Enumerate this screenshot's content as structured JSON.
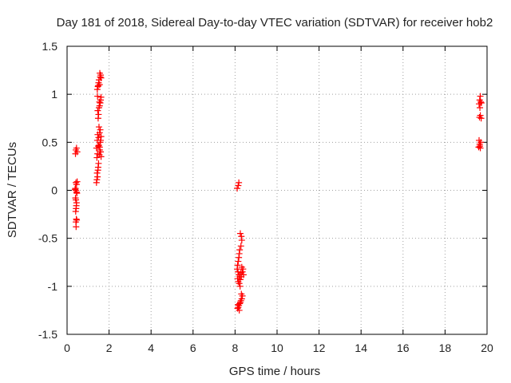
{
  "chart_data": {
    "type": "scatter",
    "title": "Day 181 of 2018, Sidereal Day-to-day VTEC variation (SDTVAR) for receiver hob2",
    "xlabel": "GPS time / hours",
    "ylabel": "SDTVAR / TECUs",
    "xlim": [
      0,
      20
    ],
    "ylim": [
      -1.5,
      1.5
    ],
    "x_ticks": [
      0,
      2,
      4,
      6,
      8,
      10,
      12,
      14,
      16,
      18,
      20
    ],
    "y_ticks": [
      -1.5,
      -1,
      -0.5,
      0,
      0.5,
      1,
      1.5
    ],
    "x_tick_labels": [
      "0",
      "2",
      "4",
      "6",
      "8",
      "10",
      "12",
      "14",
      "16",
      "18",
      "20"
    ],
    "y_tick_labels": [
      "-1.5",
      "-1",
      "-0.5",
      "0",
      "0.5",
      "1",
      "1.5"
    ],
    "grid": true,
    "marker": "+",
    "marker_color": "#ff0000",
    "series": [
      {
        "name": "SDTVAR",
        "points": [
          [
            0.4,
            0.38
          ],
          [
            0.42,
            0.42
          ],
          [
            0.45,
            0.44
          ],
          [
            0.48,
            0.4
          ],
          [
            0.42,
            0.08
          ],
          [
            0.45,
            0.06
          ],
          [
            0.48,
            0.09
          ],
          [
            0.4,
            0.02
          ],
          [
            0.42,
            0.0
          ],
          [
            0.45,
            -0.02
          ],
          [
            0.38,
            0.01
          ],
          [
            0.47,
            -0.03
          ],
          [
            0.4,
            -0.08
          ],
          [
            0.42,
            -0.1
          ],
          [
            0.45,
            -0.13
          ],
          [
            0.44,
            -0.16
          ],
          [
            0.43,
            -0.19
          ],
          [
            0.41,
            -0.22
          ],
          [
            0.44,
            -0.3
          ],
          [
            0.46,
            -0.31
          ],
          [
            0.42,
            -0.33
          ],
          [
            0.43,
            -0.38
          ],
          [
            1.4,
            0.08
          ],
          [
            1.42,
            0.11
          ],
          [
            1.45,
            0.14
          ],
          [
            1.43,
            0.18
          ],
          [
            1.47,
            0.21
          ],
          [
            1.48,
            0.24
          ],
          [
            1.5,
            0.28
          ],
          [
            1.42,
            0.34
          ],
          [
            1.45,
            0.38
          ],
          [
            1.4,
            0.44
          ],
          [
            1.48,
            0.46
          ],
          [
            1.52,
            0.47
          ],
          [
            1.55,
            0.45
          ],
          [
            1.58,
            0.5
          ],
          [
            1.44,
            0.52
          ],
          [
            1.5,
            0.55
          ],
          [
            1.6,
            0.52
          ],
          [
            1.62,
            0.56
          ],
          [
            1.46,
            0.58
          ],
          [
            1.55,
            0.6
          ],
          [
            1.58,
            0.63
          ],
          [
            1.52,
            0.66
          ],
          [
            1.6,
            0.4
          ],
          [
            1.62,
            0.35
          ],
          [
            1.56,
            0.42
          ],
          [
            1.54,
            0.37
          ],
          [
            1.48,
            0.75
          ],
          [
            1.5,
            0.79
          ],
          [
            1.46,
            0.83
          ],
          [
            1.52,
            0.86
          ],
          [
            1.55,
            0.88
          ],
          [
            1.58,
            0.91
          ],
          [
            1.6,
            0.94
          ],
          [
            1.62,
            0.97
          ],
          [
            1.54,
            0.92
          ],
          [
            1.45,
            0.98
          ],
          [
            1.44,
            1.05
          ],
          [
            1.48,
            1.09
          ],
          [
            1.5,
            1.12
          ],
          [
            1.52,
            1.15
          ],
          [
            1.55,
            1.1
          ],
          [
            1.58,
            1.18
          ],
          [
            1.6,
            1.2
          ],
          [
            1.62,
            1.17
          ],
          [
            1.56,
            1.22
          ],
          [
            1.47,
            1.08
          ],
          [
            8.1,
            0.02
          ],
          [
            8.15,
            0.05
          ],
          [
            8.18,
            0.08
          ],
          [
            8.25,
            -0.45
          ],
          [
            8.3,
            -0.48
          ],
          [
            8.32,
            -0.52
          ],
          [
            8.28,
            -0.58
          ],
          [
            8.22,
            -0.62
          ],
          [
            8.2,
            -0.66
          ],
          [
            8.18,
            -0.7
          ],
          [
            8.15,
            -0.74
          ],
          [
            8.12,
            -0.78
          ],
          [
            8.1,
            -0.82
          ],
          [
            8.14,
            -0.85
          ],
          [
            8.18,
            -0.88
          ],
          [
            8.12,
            -0.92
          ],
          [
            8.15,
            -0.95
          ],
          [
            8.2,
            -0.97
          ],
          [
            8.25,
            -0.93
          ],
          [
            8.3,
            -0.9
          ],
          [
            8.35,
            -0.85
          ],
          [
            8.38,
            -0.82
          ],
          [
            8.32,
            -0.8
          ],
          [
            8.28,
            -0.86
          ],
          [
            8.4,
            -0.88
          ],
          [
            8.22,
            -0.9
          ],
          [
            8.24,
            -1.0
          ],
          [
            8.3,
            -1.08
          ],
          [
            8.35,
            -1.1
          ],
          [
            8.32,
            -1.13
          ],
          [
            8.28,
            -1.15
          ],
          [
            8.25,
            -1.17
          ],
          [
            8.22,
            -1.18
          ],
          [
            8.18,
            -1.2
          ],
          [
            8.15,
            -1.22
          ],
          [
            8.12,
            -1.23
          ],
          [
            8.2,
            -1.25
          ],
          [
            8.14,
            -1.19
          ],
          [
            19.6,
            0.45
          ],
          [
            19.65,
            0.48
          ],
          [
            19.7,
            0.5
          ],
          [
            19.68,
            0.44
          ],
          [
            19.62,
            0.52
          ],
          [
            19.66,
            0.46
          ],
          [
            19.64,
            0.76
          ],
          [
            19.68,
            0.78
          ],
          [
            19.72,
            0.75
          ],
          [
            19.66,
            0.86
          ],
          [
            19.62,
            0.9
          ],
          [
            19.7,
            0.92
          ],
          [
            19.65,
            0.94
          ],
          [
            19.68,
            0.98
          ],
          [
            19.73,
            0.91
          ]
        ]
      }
    ]
  }
}
